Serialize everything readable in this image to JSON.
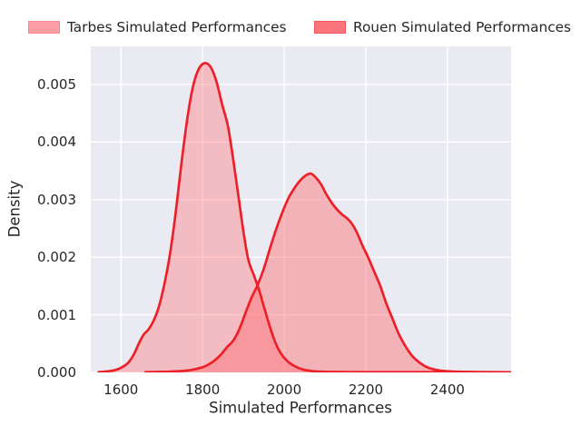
{
  "figure": {
    "background": "#FFFFFF",
    "plot_background": "#EAEAF2",
    "grid_color": "#FFFFFF",
    "text_color": "#262626"
  },
  "legend": {
    "position": "top",
    "items": [
      {
        "label": "Tarbes Simulated Performances",
        "patch_fill": "#FB9DA2",
        "patch_edge": "#F8868D"
      },
      {
        "label": "Rouen Simulated Performances",
        "patch_fill": "#F9757B",
        "patch_edge": "#F6545B"
      }
    ]
  },
  "chart_data": {
    "type": "area",
    "subtype": "kde-density",
    "title": "",
    "xlabel": "Simulated Performances",
    "ylabel": "Density",
    "xlim": [
      1526,
      2556
    ],
    "ylim": [
      0,
      0.005662
    ],
    "grid": true,
    "x_ticks": [
      1600,
      1800,
      2000,
      2200,
      2400
    ],
    "x_tick_labels": [
      "1600",
      "1800",
      "2000",
      "2200",
      "2400"
    ],
    "y_ticks": [
      0,
      0.001,
      0.002,
      0.003,
      0.004,
      0.005
    ],
    "y_tick_labels": [
      "0.000",
      "0.001",
      "0.002",
      "0.003",
      "0.004",
      "0.005"
    ],
    "line_color": "#EC2028",
    "series": [
      {
        "name": "Tarbes Simulated Performances",
        "fill": "rgba(255,132,138,0.45)",
        "peak": {
          "x": 1805,
          "density": 0.00537
        },
        "points": [
          [
            1545,
            5e-06
          ],
          [
            1570,
            2e-05
          ],
          [
            1590,
            5e-05
          ],
          [
            1605,
            0.0001
          ],
          [
            1618,
            0.00017
          ],
          [
            1632,
            0.00032
          ],
          [
            1645,
            0.00052
          ],
          [
            1656,
            0.00066
          ],
          [
            1668,
            0.00075
          ],
          [
            1680,
            0.0009
          ],
          [
            1692,
            0.00112
          ],
          [
            1706,
            0.00152
          ],
          [
            1720,
            0.00205
          ],
          [
            1734,
            0.00277
          ],
          [
            1748,
            0.00362
          ],
          [
            1762,
            0.00438
          ],
          [
            1776,
            0.00495
          ],
          [
            1790,
            0.00526
          ],
          [
            1805,
            0.00537
          ],
          [
            1820,
            0.0053
          ],
          [
            1834,
            0.00505
          ],
          [
            1848,
            0.00465
          ],
          [
            1862,
            0.00428
          ],
          [
            1875,
            0.0037
          ],
          [
            1888,
            0.00305
          ],
          [
            1900,
            0.00245
          ],
          [
            1912,
            0.00196
          ],
          [
            1926,
            0.00168
          ],
          [
            1938,
            0.00144
          ],
          [
            1950,
            0.00115
          ],
          [
            1962,
            0.00086
          ],
          [
            1974,
            0.0006
          ],
          [
            1986,
            0.0004
          ],
          [
            1998,
            0.00027
          ],
          [
            2012,
            0.00017
          ],
          [
            2028,
            0.0001
          ],
          [
            2046,
            5e-05
          ],
          [
            2066,
            2.5e-05
          ],
          [
            2092,
            1.2e-05
          ],
          [
            2130,
            8e-06
          ],
          [
            2200,
            5e-06
          ],
          [
            2350,
            4e-06
          ],
          [
            2556,
            3e-06
          ]
        ]
      },
      {
        "name": "Rouen Simulated Performances",
        "fill": "rgba(255,99,104,0.42)",
        "peak": {
          "x": 2066,
          "density": 0.00345
        },
        "points": [
          [
            1660,
            5e-06
          ],
          [
            1700,
            1e-05
          ],
          [
            1740,
            2e-05
          ],
          [
            1770,
            4e-05
          ],
          [
            1800,
            9e-05
          ],
          [
            1815,
            0.00014
          ],
          [
            1830,
            0.00021
          ],
          [
            1845,
            0.00031
          ],
          [
            1860,
            0.00044
          ],
          [
            1875,
            0.00055
          ],
          [
            1890,
            0.00075
          ],
          [
            1905,
            0.00103
          ],
          [
            1920,
            0.0013
          ],
          [
            1935,
            0.00152
          ],
          [
            1950,
            0.0018
          ],
          [
            1965,
            0.00215
          ],
          [
            1980,
            0.00248
          ],
          [
            1995,
            0.00277
          ],
          [
            2010,
            0.00302
          ],
          [
            2025,
            0.0032
          ],
          [
            2040,
            0.00334
          ],
          [
            2055,
            0.00343
          ],
          [
            2066,
            0.00345
          ],
          [
            2078,
            0.00338
          ],
          [
            2090,
            0.00327
          ],
          [
            2102,
            0.00311
          ],
          [
            2115,
            0.00296
          ],
          [
            2128,
            0.00284
          ],
          [
            2142,
            0.00274
          ],
          [
            2155,
            0.00267
          ],
          [
            2168,
            0.00256
          ],
          [
            2180,
            0.0024
          ],
          [
            2192,
            0.0022
          ],
          [
            2205,
            0.00201
          ],
          [
            2220,
            0.00176
          ],
          [
            2235,
            0.00151
          ],
          [
            2250,
            0.0012
          ],
          [
            2265,
            0.00094
          ],
          [
            2280,
            0.00068
          ],
          [
            2295,
            0.00048
          ],
          [
            2312,
            0.0003
          ],
          [
            2330,
            0.00018
          ],
          [
            2350,
            9e-05
          ],
          [
            2375,
            4e-05
          ],
          [
            2400,
            2e-05
          ],
          [
            2440,
            1e-05
          ],
          [
            2500,
            5e-06
          ],
          [
            2556,
            3e-06
          ]
        ]
      }
    ]
  }
}
